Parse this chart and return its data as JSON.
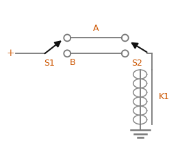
{
  "bg_color": "#ffffff",
  "wire_color": "#777777",
  "arrow_color": "#111111",
  "coil_color": "#888888",
  "ground_color": "#777777",
  "label_color_orange": "#cc5500",
  "plus_label": "+",
  "label_A": "A",
  "label_B": "B",
  "label_S1": "S1",
  "label_S2": "S2",
  "label_K1": "K1",
  "figsize": [
    2.82,
    2.34
  ],
  "dpi": 100
}
